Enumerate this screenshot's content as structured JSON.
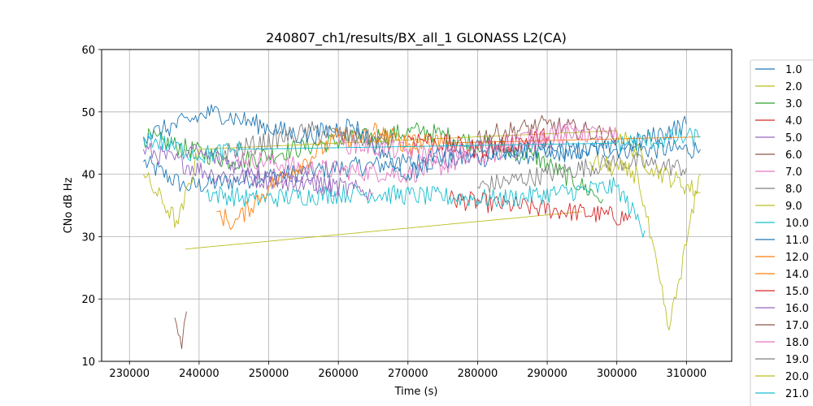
{
  "chart_data": {
    "type": "line",
    "title": "240807_ch1/results/BX_all_1 GLONASS L2(CA)",
    "xlabel": "Time (s)",
    "ylabel": "CNo dB Hz",
    "xlim": [
      226000,
      316500
    ],
    "ylim": [
      10,
      60
    ],
    "xticks": [
      230000,
      240000,
      250000,
      260000,
      270000,
      280000,
      290000,
      300000,
      310000
    ],
    "yticks": [
      10,
      20,
      30,
      40,
      50,
      60
    ],
    "grid": true,
    "legend_position": "right, outside plot (clipped at bottom)",
    "series": [
      {
        "name": "1.0",
        "color": "#1f77b4",
        "points": [
          [
            232000,
            42
          ],
          [
            238000,
            38
          ],
          [
            260000,
            41
          ],
          [
            285000,
            43
          ],
          [
            300000,
            44
          ],
          [
            312000,
            44
          ]
        ]
      },
      {
        "name": "2.0",
        "color": "#bcbd22",
        "points": [
          [
            238000,
            28
          ],
          [
            295000,
            34
          ]
        ]
      },
      {
        "name": "3.0",
        "color": "#2ca02c",
        "points": [
          [
            232000,
            46
          ],
          [
            245000,
            42
          ],
          [
            258000,
            45
          ],
          [
            272000,
            47
          ],
          [
            288000,
            43
          ],
          [
            298000,
            36
          ]
        ]
      },
      {
        "name": "4.0",
        "color": "#d62728",
        "points": [
          [
            276000,
            36
          ],
          [
            302000,
            33
          ]
        ]
      },
      {
        "name": "5.0",
        "color": "#9467bd",
        "points": [
          [
            232000,
            44
          ],
          [
            242000,
            40
          ],
          [
            260000,
            38
          ]
        ]
      },
      {
        "name": "6.0",
        "color": "#8c564b",
        "points": [
          [
            236500,
            17
          ],
          [
            237500,
            12
          ],
          [
            238200,
            18
          ]
        ]
      },
      {
        "name": "7.0",
        "color": "#e377c2",
        "points": [
          [
            245000,
            43
          ],
          [
            255000,
            41
          ],
          [
            270000,
            40
          ],
          [
            285000,
            44
          ],
          [
            295000,
            47
          ]
        ]
      },
      {
        "name": "8.0",
        "color": "#7f7f7f",
        "points": [
          [
            280000,
            38
          ],
          [
            290000,
            40
          ],
          [
            300000,
            42
          ],
          [
            310000,
            41
          ]
        ]
      },
      {
        "name": "9.0",
        "color": "#bcbd22",
        "points": [
          [
            232000,
            40
          ],
          [
            237000,
            32
          ],
          [
            240000,
            44
          ],
          [
            300000,
            47
          ],
          [
            305000,
            41
          ],
          [
            312000,
            37
          ]
        ]
      },
      {
        "name": "10.0",
        "color": "#17becf",
        "points": [
          [
            241000,
            37
          ],
          [
            248000,
            36
          ],
          [
            262000,
            37
          ],
          [
            283000,
            36
          ],
          [
            300000,
            38
          ],
          [
            304000,
            31
          ]
        ]
      },
      {
        "name": "11.0",
        "color": "#1f77b4",
        "points": [
          [
            232000,
            46
          ],
          [
            242000,
            50
          ],
          [
            255000,
            46
          ],
          [
            262000,
            48
          ],
          [
            270000,
            40
          ],
          [
            276000,
            44
          ],
          [
            300000,
            44
          ],
          [
            310000,
            48
          ]
        ]
      },
      {
        "name": "12.0",
        "color": "#ff7f0e",
        "points": [
          [
            242500,
            34
          ],
          [
            245000,
            32
          ],
          [
            250000,
            38
          ],
          [
            260000,
            46
          ],
          [
            275000,
            45
          ],
          [
            312000,
            46
          ]
        ]
      },
      {
        "name": "14.0",
        "color": "#ff7f0e",
        "points": [
          [
            265000,
            47
          ],
          [
            272000,
            44
          ]
        ]
      },
      {
        "name": "15.0",
        "color": "#d62728",
        "points": [
          [
            270000,
            46
          ],
          [
            280000,
            44
          ],
          [
            290000,
            46
          ]
        ]
      },
      {
        "name": "16.0",
        "color": "#9467bd",
        "points": [
          [
            238000,
            44
          ],
          [
            250000,
            40
          ],
          [
            265000,
            37
          ]
        ]
      },
      {
        "name": "17.0",
        "color": "#8c564b",
        "points": [
          [
            280000,
            46
          ],
          [
            290000,
            48
          ],
          [
            300000,
            46
          ]
        ]
      },
      {
        "name": "18.0",
        "color": "#e377c2",
        "points": [
          [
            260000,
            45
          ],
          [
            275000,
            43
          ],
          [
            292000,
            47
          ],
          [
            300000,
            46
          ]
        ]
      },
      {
        "name": "19.0",
        "color": "#7f7f7f",
        "points": [
          [
            242000,
            43
          ],
          [
            256000,
            47
          ],
          [
            268000,
            45
          ]
        ]
      },
      {
        "name": "20.0",
        "color": "#bcbd22",
        "points": [
          [
            296000,
            42
          ],
          [
            303000,
            40
          ],
          [
            307500,
            15
          ],
          [
            312000,
            40
          ]
        ]
      },
      {
        "name": "21.0",
        "color": "#17becf",
        "points": [
          [
            232000,
            46
          ],
          [
            240000,
            43
          ],
          [
            246000,
            44
          ],
          [
            300000,
            45
          ],
          [
            312000,
            46
          ]
        ]
      }
    ]
  }
}
